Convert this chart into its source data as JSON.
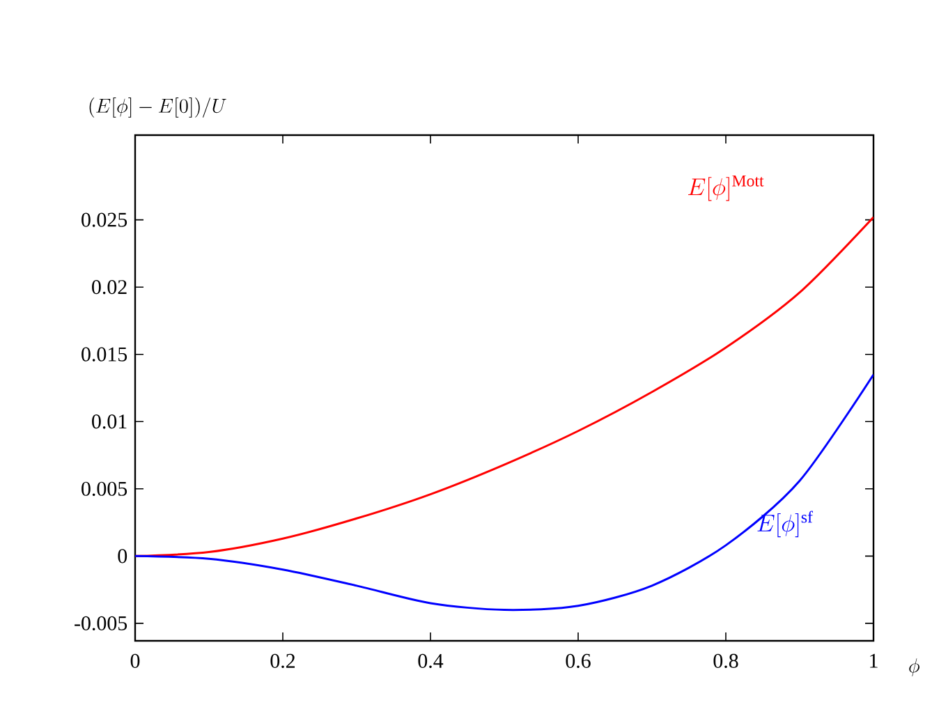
{
  "chart_data": {
    "type": "line",
    "xlabel": "\\phi",
    "ylabel": "(E[\\phi]-E[0])/U",
    "x": [
      0,
      0.1,
      0.2,
      0.3,
      0.4,
      0.5,
      0.6,
      0.7,
      0.8,
      0.9,
      1.0
    ],
    "series": [
      {
        "color": "#ff0000",
        "values": [
          0,
          0.0003,
          0.0013,
          0.0028,
          0.0046,
          0.0068,
          0.0093,
          0.0122,
          0.0155,
          0.0196,
          0.0252
        ]
      },
      {
        "color": "#0000ff",
        "values": [
          0,
          -0.0002,
          -0.001,
          -0.0022,
          -0.0035,
          -0.004,
          -0.0037,
          -0.0022,
          0.0008,
          0.0056,
          0.0135
        ]
      }
    ],
    "annotations": [
      "E[\\phi]^{\\mathrm{Mott}}",
      "E[\\phi]^{\\mathrm{sf}}"
    ],
    "xlim": [
      0,
      1
    ],
    "ylim": [
      -0.0063,
      0.0313
    ],
    "xticks": [
      0,
      0.2,
      0.4,
      0.6,
      0.8,
      1
    ],
    "yticks": [
      -0.005,
      0,
      0.005,
      0.01,
      0.015,
      0.02,
      0.025
    ],
    "grid": false,
    "marker": "none",
    "line_style": "solid"
  }
}
